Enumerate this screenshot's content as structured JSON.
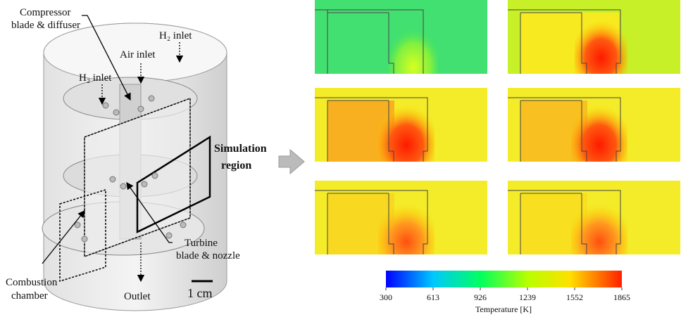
{
  "labels": {
    "compressor": [
      "Compressor",
      "blade & diffuser"
    ],
    "h2_inlet_right": "H₂ inlet",
    "air_inlet": "Air inlet",
    "h2_inlet_left": "H₂ inlet",
    "simulation_region": [
      "Simulation",
      "region"
    ],
    "turbine": [
      "Turbine",
      "blade & nozzle"
    ],
    "combustion": [
      "Combustion",
      "chamber"
    ],
    "outlet": "Outlet",
    "scale": "1 cm"
  },
  "colorbar": {
    "label": "Temperature [K]",
    "ticks": [
      300,
      613,
      926,
      1239,
      1552,
      1865
    ]
  }
}
